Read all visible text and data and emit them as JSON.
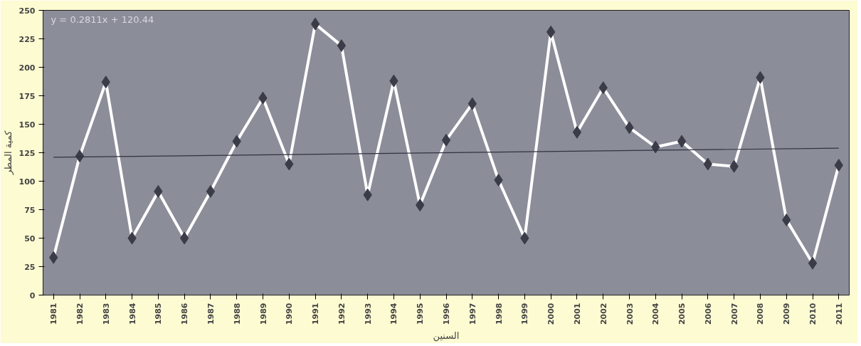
{
  "chart_data": {
    "type": "line",
    "xlabel": "السنين",
    "ylabel": "كمية المطر",
    "x": [
      1981,
      1982,
      1983,
      1984,
      1985,
      1986,
      1987,
      1988,
      1989,
      1990,
      1991,
      1992,
      1993,
      1994,
      1995,
      1996,
      1997,
      1998,
      1999,
      2000,
      2001,
      2002,
      2003,
      2004,
      2005,
      2006,
      2007,
      2008,
      2009,
      2010,
      2011
    ],
    "series": [
      {
        "color": "#ffffff",
        "marker": "diamond",
        "values": [
          33,
          122,
          187,
          50,
          91,
          50,
          91,
          135,
          173,
          115,
          238,
          219,
          88,
          188,
          79,
          136,
          168,
          101,
          50,
          231,
          143,
          182,
          147,
          130,
          135,
          115,
          113,
          191,
          66,
          28,
          114
        ]
      },
      {
        "type": "line",
        "color": "#2f3440",
        "marker": "none",
        "x": [
          1981,
          2011
        ],
        "values": [
          121,
          129
        ]
      }
    ],
    "annotations": [
      "y = 0.2811x + 120.44"
    ],
    "xlim": [
      1980.6,
      2011.4
    ],
    "xticks": [
      1981,
      1982,
      1983,
      1984,
      1985,
      1986,
      1987,
      1988,
      1989,
      1990,
      1991,
      1992,
      1993,
      1994,
      1995,
      1996,
      1997,
      1998,
      1999,
      2000,
      2001,
      2002,
      2003,
      2004,
      2005,
      2006,
      2007,
      2008,
      2009,
      2010,
      2011
    ],
    "ylim": [
      0,
      250
    ],
    "yticks": [
      0,
      25,
      50,
      75,
      100,
      125,
      150,
      175,
      200,
      225,
      250
    ],
    "grid": false
  }
}
